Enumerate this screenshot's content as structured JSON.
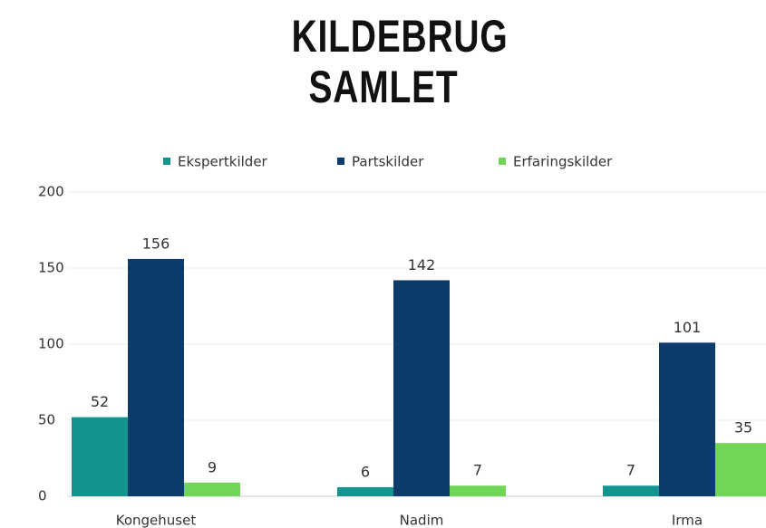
{
  "chart_data": {
    "type": "bar",
    "title": "KILDEBRUG SAMLET",
    "categories": [
      "Kongehuset",
      "Nadim",
      "Irma"
    ],
    "series": [
      {
        "name": "Ekspertkilder",
        "color": "#14948f",
        "values": [
          52,
          6,
          7
        ]
      },
      {
        "name": "Partskilder",
        "color": "#0b3c6c",
        "values": [
          156,
          142,
          101
        ]
      },
      {
        "name": "Erfaringskilder",
        "color": "#6fd656",
        "values": [
          9,
          7,
          35
        ]
      }
    ],
    "ylim": [
      0,
      200
    ],
    "yticks": [
      0,
      50,
      100,
      150,
      200
    ],
    "grid": true,
    "legend": "top"
  }
}
